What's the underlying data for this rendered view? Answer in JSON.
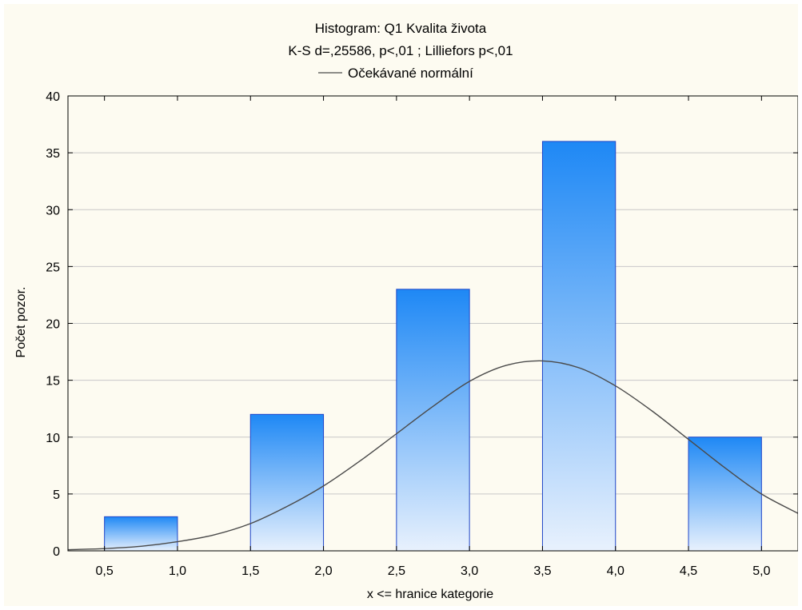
{
  "chart_data": {
    "type": "bar",
    "title": "Histogram: Q1 Kvalita života",
    "subtitle": "K-S d=,25586, p<,01 ; Lilliefors p<,01",
    "legend": {
      "label": "Očekávané normální",
      "placement": "top-center"
    },
    "xlabel": "x <= hranice kategorie",
    "ylabel": "Počet pozor.",
    "xlim": [
      0.25,
      5.25
    ],
    "ylim": [
      0,
      40
    ],
    "x_ticks": [
      0.5,
      1.0,
      1.5,
      2.0,
      2.5,
      3.0,
      3.5,
      4.0,
      4.5,
      5.0
    ],
    "x_tick_labels": [
      "0,5",
      "1,0",
      "1,5",
      "2,0",
      "2,5",
      "3,0",
      "3,5",
      "4,0",
      "4,5",
      "5,0"
    ],
    "y_ticks": [
      0,
      5,
      10,
      15,
      20,
      25,
      30,
      35,
      40
    ],
    "y_tick_labels": [
      "0",
      "5",
      "10",
      "15",
      "20",
      "25",
      "30",
      "35",
      "40"
    ],
    "grid": "horizontal",
    "bins": [
      {
        "from": 0.5,
        "to": 1.0,
        "count": 3
      },
      {
        "from": 1.5,
        "to": 2.0,
        "count": 12
      },
      {
        "from": 2.5,
        "to": 3.0,
        "count": 23
      },
      {
        "from": 3.5,
        "to": 4.0,
        "count": 36
      },
      {
        "from": 4.5,
        "to": 5.0,
        "count": 10
      }
    ],
    "normal_curve": {
      "x": [
        0.25,
        0.5,
        0.75,
        1.0,
        1.25,
        1.5,
        1.75,
        2.0,
        2.25,
        2.5,
        2.75,
        3.0,
        3.25,
        3.5,
        3.75,
        4.0,
        4.25,
        4.5,
        4.75,
        5.0,
        5.25
      ],
      "y": [
        0.1,
        0.2,
        0.4,
        0.8,
        1.4,
        2.4,
        3.9,
        5.7,
        7.9,
        10.3,
        12.7,
        14.9,
        16.3,
        16.7,
        16.1,
        14.5,
        12.3,
        9.8,
        7.3,
        5.0,
        3.3
      ]
    },
    "colors": {
      "bar_top": "#1e88f5",
      "bar_bottom": "#e8f1fd",
      "bar_border": "#1f45c8",
      "curve": "#4a4a4a",
      "grid": "#c8c8c8",
      "background": "#fdfbf1"
    }
  }
}
